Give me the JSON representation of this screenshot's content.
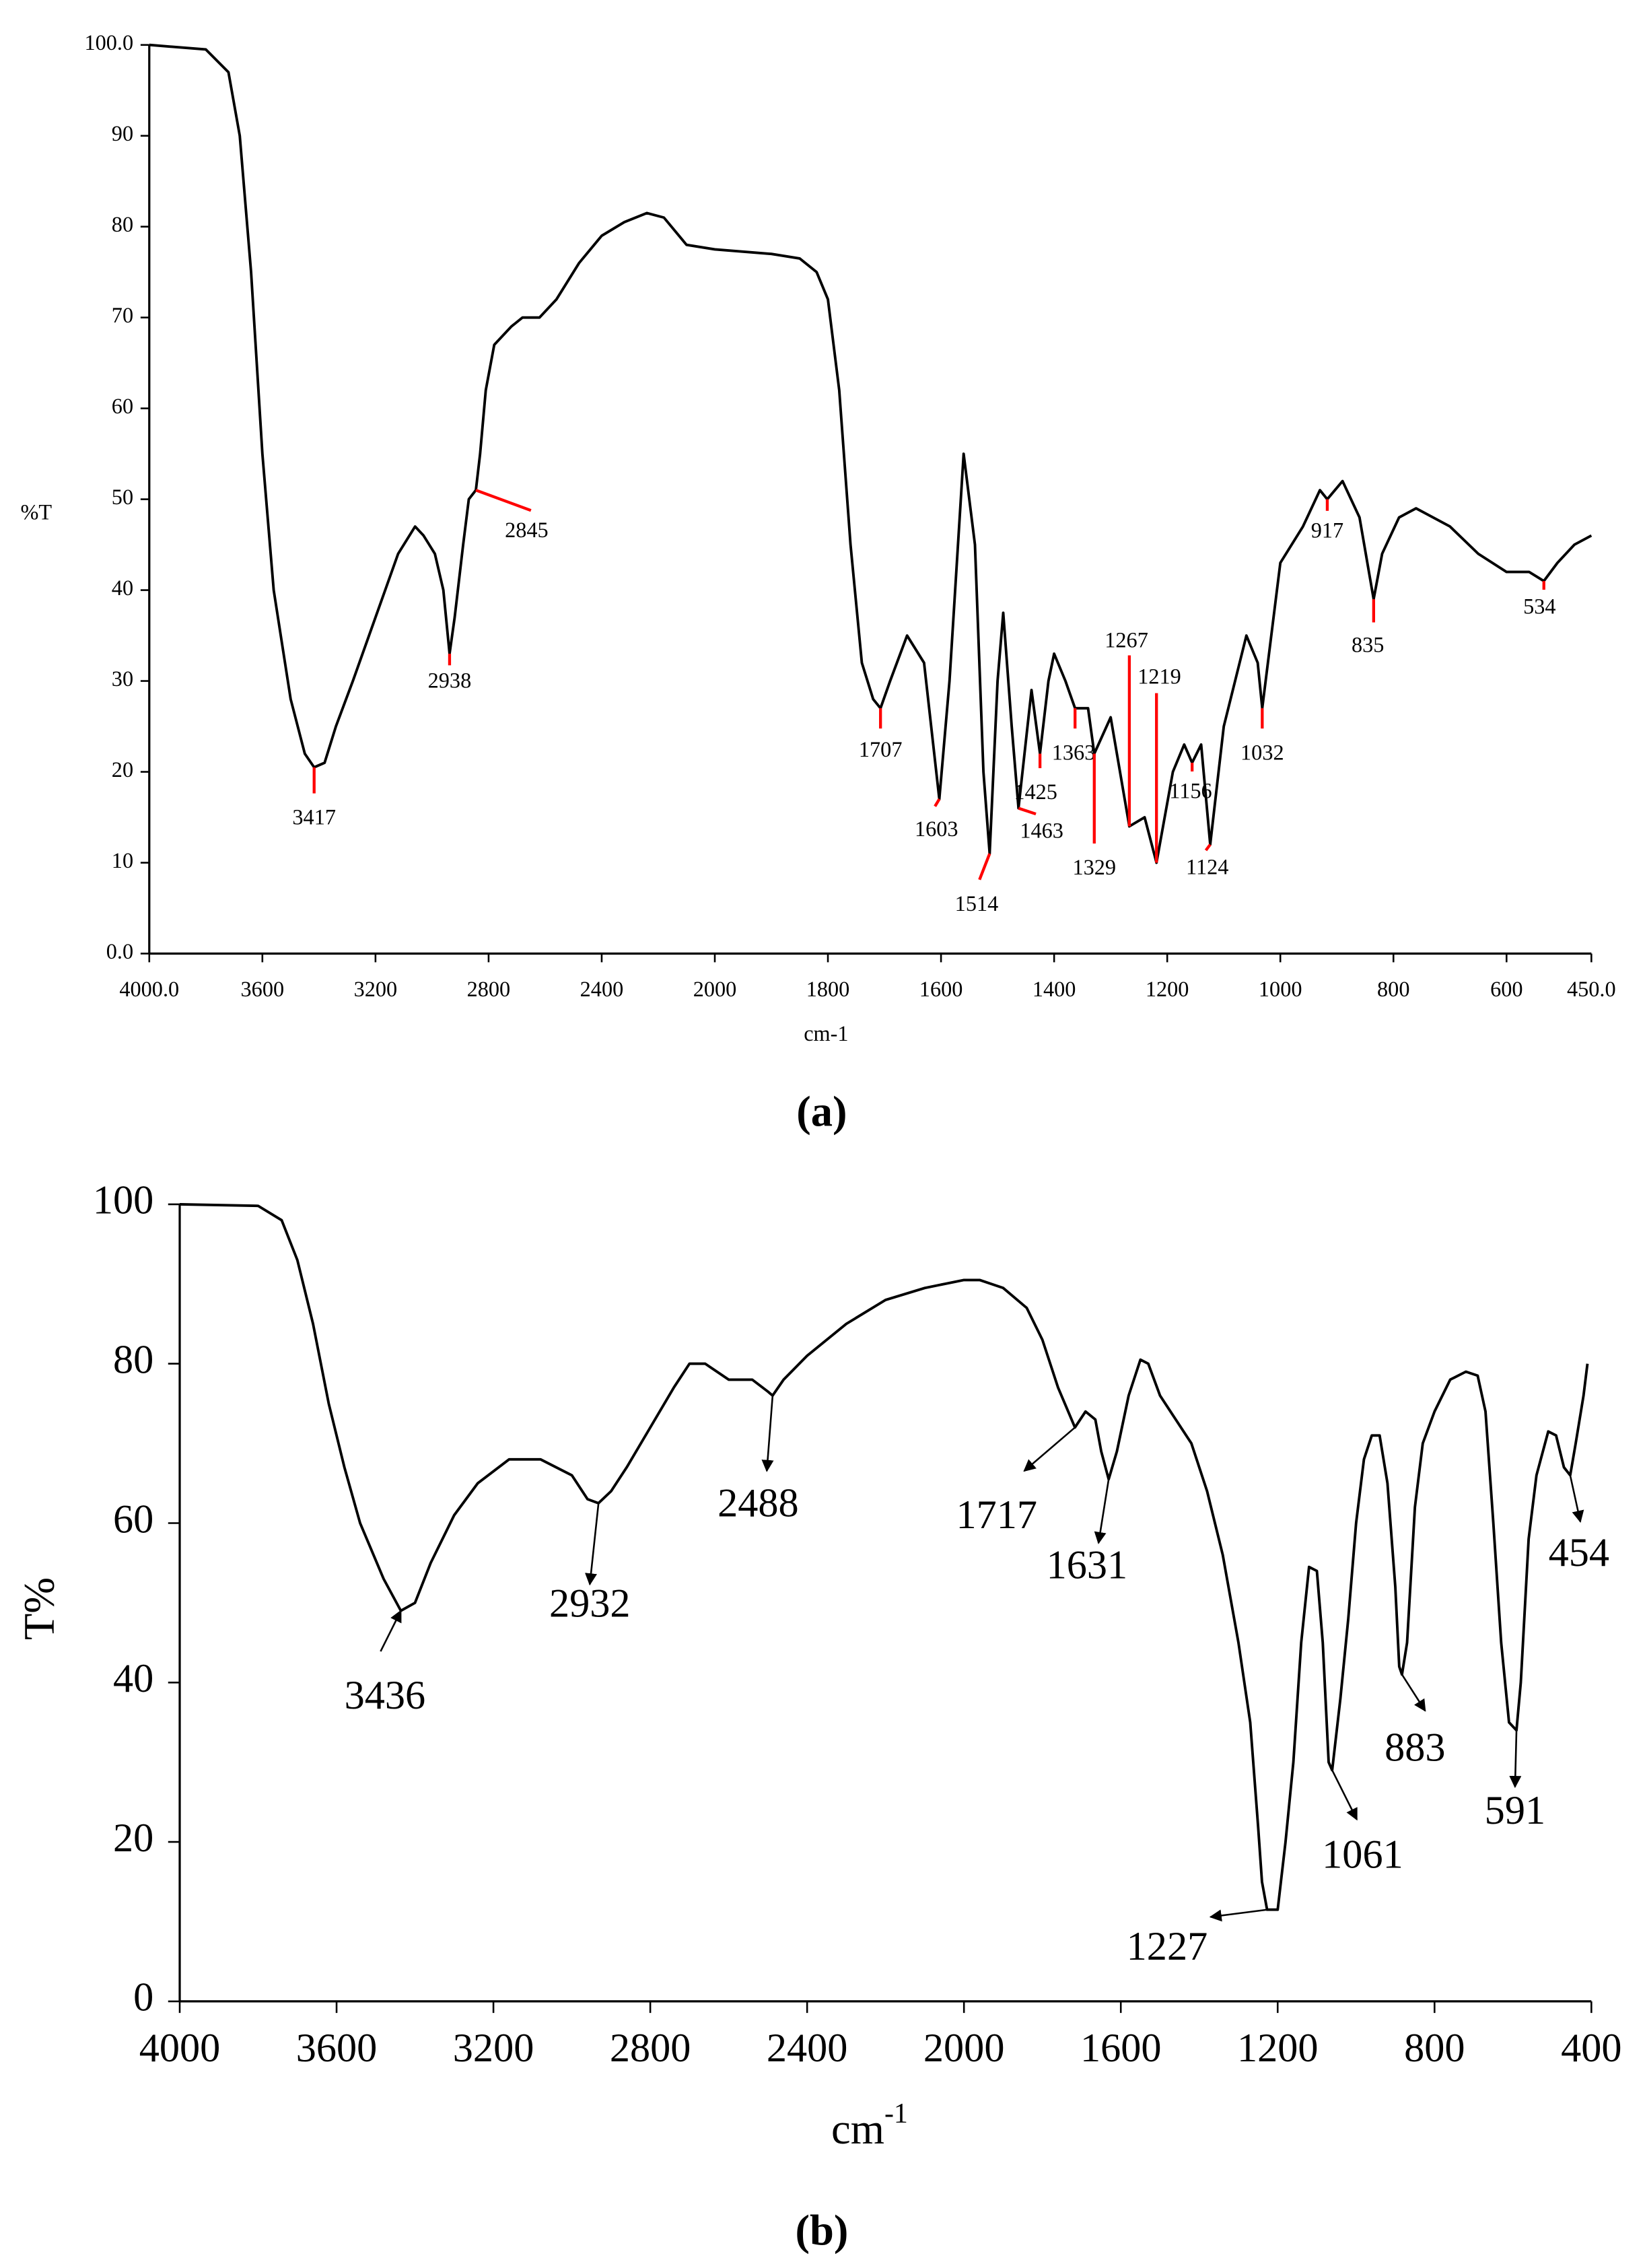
{
  "chart_data": [
    {
      "type": "line",
      "caption": "(a)",
      "y_label": "%T",
      "x_label": "cm-1",
      "xlim": [
        4000,
        450
      ],
      "x_scale_break": 2000,
      "x_scale_factor": 2,
      "xticks": [
        {
          "value": 4000,
          "label": "4000.0"
        },
        3600,
        3200,
        2800,
        2400,
        2000,
        1800,
        1600,
        1400,
        1200,
        1000,
        800,
        600,
        {
          "value": 450,
          "label": "450.0"
        }
      ],
      "ylim": [
        0,
        100
      ],
      "yticks": [
        {
          "value": 0,
          "label": "0.0"
        },
        10,
        20,
        30,
        40,
        50,
        60,
        70,
        80,
        90,
        {
          "value": 100,
          "label": "100.0"
        }
      ],
      "x": [
        4000,
        3800,
        3720,
        3680,
        3640,
        3600,
        3560,
        3500,
        3450,
        3417,
        3380,
        3340,
        3280,
        3200,
        3120,
        3060,
        3030,
        2990,
        2960,
        2938,
        2920,
        2890,
        2870,
        2845,
        2830,
        2810,
        2780,
        2720,
        2680,
        2620,
        2560,
        2480,
        2400,
        2320,
        2240,
        2180,
        2100,
        2000,
        1900,
        1850,
        1820,
        1800,
        1780,
        1760,
        1740,
        1720,
        1707,
        1690,
        1660,
        1630,
        1603,
        1585,
        1560,
        1540,
        1525,
        1514,
        1500,
        1490,
        1475,
        1463,
        1440,
        1425,
        1410,
        1400,
        1380,
        1363,
        1340,
        1329,
        1300,
        1267,
        1240,
        1219,
        1190,
        1170,
        1156,
        1140,
        1124,
        1100,
        1060,
        1040,
        1032,
        1000,
        960,
        930,
        917,
        890,
        860,
        835,
        820,
        790,
        760,
        700,
        650,
        600,
        560,
        534,
        510,
        480,
        450
      ],
      "series": [
        {
          "color": "#000000",
          "values": [
            100,
            99.5,
            97,
            90,
            75,
            55,
            40,
            28,
            22,
            20.5,
            21,
            25,
            30,
            37,
            44,
            47,
            46,
            44,
            40,
            33,
            37,
            45,
            50,
            51,
            55,
            62,
            67,
            69,
            70,
            70,
            72,
            76,
            79,
            80.5,
            81.5,
            81,
            78,
            77.5,
            77,
            76.5,
            75,
            72,
            62,
            45,
            32,
            28,
            27,
            30,
            35,
            32,
            17,
            30,
            55,
            45,
            20,
            11,
            30,
            37.5,
            25,
            16,
            29,
            22,
            30,
            33,
            30,
            27,
            27,
            22,
            26,
            14,
            15,
            10,
            20,
            23,
            21,
            23,
            12,
            25,
            35,
            32,
            27,
            43,
            47,
            51,
            50,
            52,
            48,
            39,
            44,
            48,
            49,
            47,
            44,
            42,
            42,
            41,
            43,
            45,
            46
          ]
        }
      ],
      "peaks": [
        3417,
        2938,
        2845,
        1707,
        1603,
        1514,
        1463,
        1425,
        1363,
        1329,
        1267,
        1219,
        1156,
        1124,
        1032,
        917,
        835,
        534
      ],
      "peak_marker": "line",
      "peak_marker_color": "#ff0000"
    },
    {
      "type": "line",
      "caption": "(b)",
      "y_label": "T%",
      "x_label": "cm",
      "x_label_sup": "-1",
      "xlim": [
        4000,
        400
      ],
      "xticks": [
        4000,
        3600,
        3200,
        2800,
        2400,
        2000,
        1600,
        1200,
        800,
        400
      ],
      "ylim": [
        0,
        100
      ],
      "yticks": [
        0,
        20,
        40,
        60,
        80,
        100
      ],
      "x": [
        4000,
        3800,
        3740,
        3700,
        3660,
        3620,
        3580,
        3540,
        3480,
        3436,
        3400,
        3360,
        3300,
        3240,
        3160,
        3080,
        3000,
        2960,
        2932,
        2900,
        2860,
        2800,
        2740,
        2700,
        2660,
        2600,
        2540,
        2500,
        2488,
        2460,
        2400,
        2300,
        2200,
        2100,
        2000,
        1960,
        1900,
        1840,
        1800,
        1760,
        1717,
        1690,
        1665,
        1650,
        1631,
        1610,
        1580,
        1550,
        1530,
        1500,
        1460,
        1420,
        1380,
        1340,
        1300,
        1270,
        1250,
        1240,
        1227,
        1200,
        1180,
        1160,
        1140,
        1120,
        1100,
        1085,
        1070,
        1061,
        1040,
        1020,
        1000,
        980,
        960,
        940,
        920,
        900,
        890,
        883,
        870,
        850,
        830,
        800,
        760,
        720,
        690,
        670,
        650,
        630,
        610,
        591,
        580,
        560,
        540,
        510,
        490,
        470,
        454,
        440,
        420,
        410
      ],
      "series": [
        {
          "color": "#000000",
          "values": [
            100,
            99.8,
            98,
            93,
            85,
            75,
            67,
            60,
            53,
            49,
            50,
            55,
            61,
            65,
            68,
            68,
            66,
            63,
            62.5,
            64,
            67,
            72,
            77,
            80,
            80,
            78,
            78,
            76.5,
            76,
            78,
            81,
            85,
            88,
            89.5,
            90.5,
            90.5,
            89.5,
            87,
            83,
            77,
            72,
            74,
            73,
            69,
            65.5,
            69,
            76,
            80.5,
            80,
            76,
            73,
            70,
            64,
            56,
            45,
            35,
            22,
            15,
            11.5,
            11.5,
            20,
            30,
            45,
            54.5,
            54,
            45,
            30,
            29,
            38,
            48,
            60,
            68,
            71,
            71,
            65,
            52,
            42,
            41,
            45,
            62,
            70,
            74,
            78,
            79,
            78.5,
            74,
            60,
            45,
            35,
            34,
            40,
            58,
            66,
            71.5,
            71,
            67,
            66,
            70,
            76,
            80
          ]
        }
      ],
      "peaks": [
        3436,
        2932,
        2488,
        1717,
        1631,
        1227,
        1061,
        883,
        591,
        454
      ],
      "peak_marker": "arrow",
      "peak_marker_color": "#000000"
    }
  ]
}
